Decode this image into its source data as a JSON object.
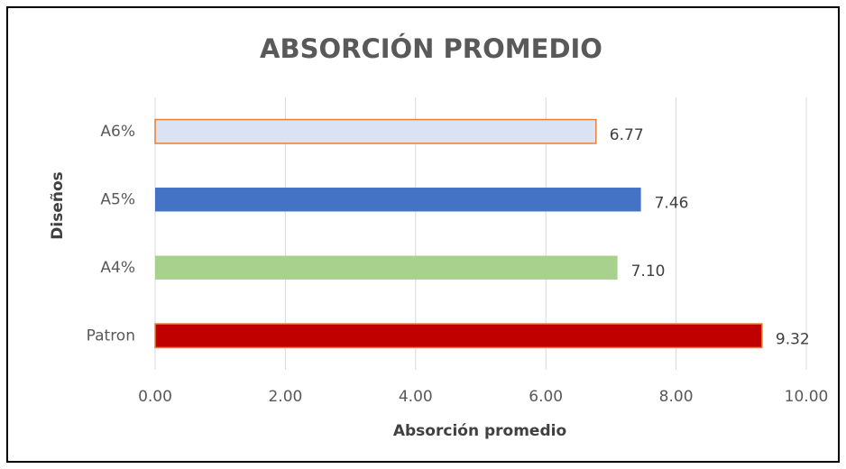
{
  "chart_data": {
    "type": "barh",
    "title": "ABSORCIÓN PROMEDIO",
    "xlabel": "Absorción promedio",
    "ylabel": "Diseños",
    "categories": [
      "Patron",
      "A4%",
      "A5%",
      "A6%"
    ],
    "values": [
      9.32,
      7.1,
      7.46,
      6.77
    ],
    "value_labels": [
      "9.32",
      "7.10",
      "7.46",
      "6.77"
    ],
    "colors": [
      "#c00000",
      "#a9d18e",
      "#4472c4",
      "#dae3f3"
    ],
    "edgecolors": [
      "#ed7d31",
      null,
      null,
      "#ed7d31"
    ],
    "xlim": [
      0,
      10
    ],
    "xticks": [
      {
        "value": 0,
        "label": "0.00"
      },
      {
        "value": 2,
        "label": "2.00"
      },
      {
        "value": 4,
        "label": "4.00"
      },
      {
        "value": 6,
        "label": "6.00"
      },
      {
        "value": 8,
        "label": "8.00"
      },
      {
        "value": 10,
        "label": "10.00"
      }
    ],
    "grid": true
  }
}
